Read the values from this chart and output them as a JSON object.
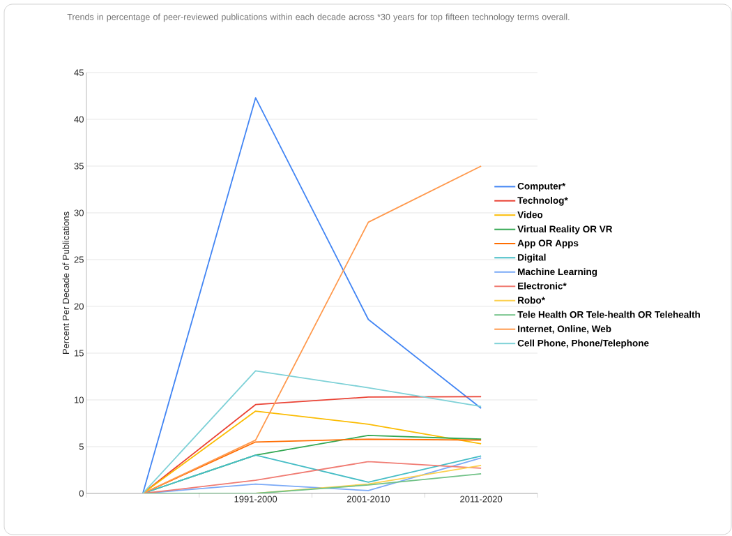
{
  "chart_data": {
    "type": "line",
    "title": "Trends in percentage of peer-reviewed publications within each decade across *30 years for top fifteen technology terms overall.",
    "ylabel": "Percent Per Decade of Publications",
    "categories": [
      null,
      "1991-2000",
      "2001-2010",
      "2011-2020"
    ],
    "ylim": [
      0,
      45
    ],
    "yticks": [
      0,
      5,
      10,
      15,
      20,
      25,
      30,
      35,
      40,
      45
    ],
    "grid": "y",
    "legend": "right",
    "series": [
      {
        "name": "Computer*",
        "color": "#4285f4",
        "values": [
          0,
          42.3,
          18.6,
          9.1
        ]
      },
      {
        "name": "Technolog*",
        "color": "#ea4335",
        "values": [
          0,
          9.5,
          10.3,
          10.35
        ]
      },
      {
        "name": "Video",
        "color": "#fbbc04",
        "values": [
          0,
          8.8,
          7.4,
          5.3
        ]
      },
      {
        "name": "Virtual Reality OR VR",
        "color": "#34a853",
        "values": [
          0,
          4.1,
          6.2,
          5.8
        ]
      },
      {
        "name": "App OR Apps",
        "color": "#ff6d01",
        "values": [
          0,
          5.5,
          5.8,
          5.7
        ]
      },
      {
        "name": "Digital",
        "color": "#46bdc6",
        "values": [
          0,
          4.1,
          1.2,
          4.0
        ]
      },
      {
        "name": "Machine Learning",
        "color": "#7baaf7",
        "values": [
          0,
          1.0,
          0.3,
          3.8
        ]
      },
      {
        "name": "Electronic*",
        "color": "#f07b72",
        "values": [
          0,
          1.4,
          3.4,
          2.7
        ]
      },
      {
        "name": "Robo*",
        "color": "#fcd04f",
        "values": [
          0,
          0,
          1.0,
          3.0
        ]
      },
      {
        "name": "Tele Health OR Tele-health OR Telehealth",
        "color": "#71c287",
        "values": [
          0,
          0,
          0.9,
          2.1
        ]
      },
      {
        "name": "Internet, Online, Web",
        "color": "#ff994d",
        "values": [
          0,
          5.7,
          29,
          35
        ]
      },
      {
        "name": "Cell Phone, Phone/Telephone",
        "color": "#7ed1d7",
        "values": [
          0,
          13.1,
          11.3,
          9.3
        ]
      }
    ]
  }
}
